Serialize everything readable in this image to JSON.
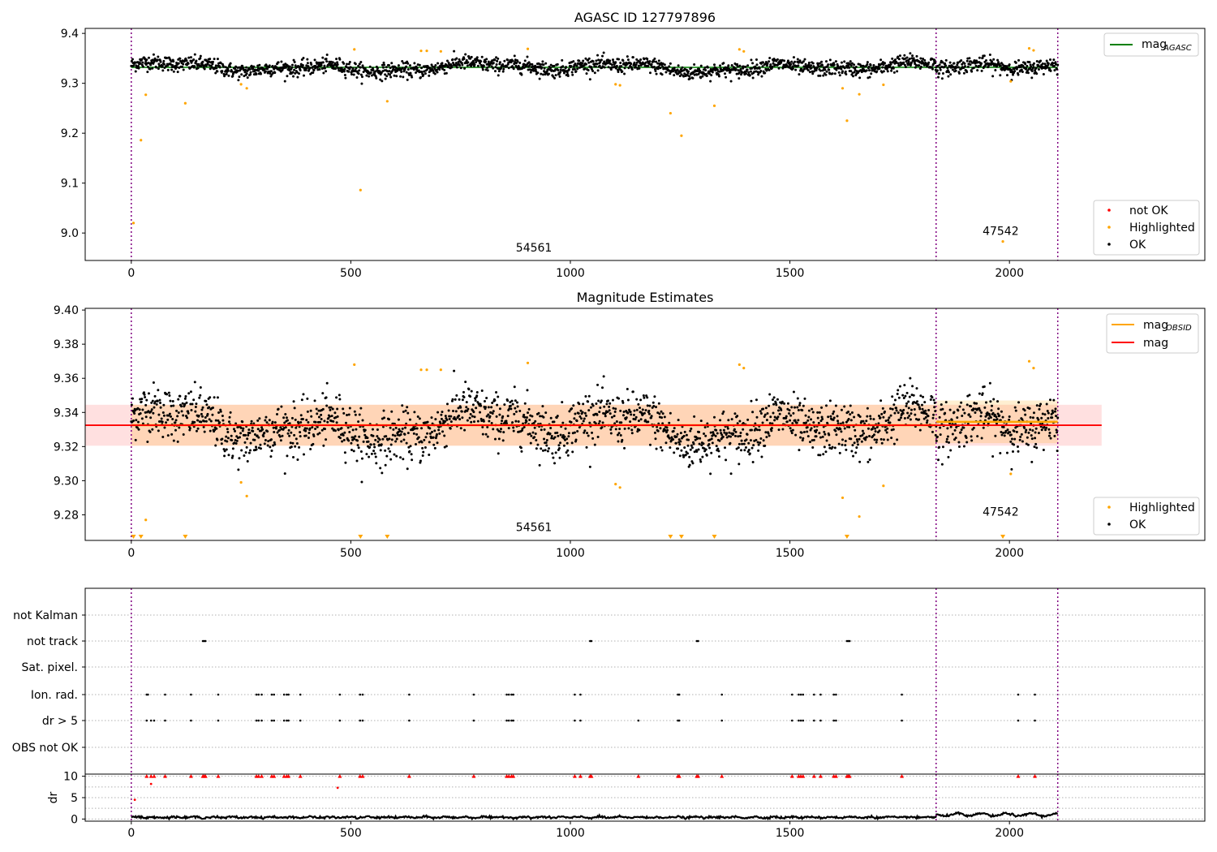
{
  "chart_data": [
    {
      "panel": "top",
      "type": "scatter",
      "title": "AGASC ID 127797896",
      "xlabel": "",
      "ylabel": "",
      "xlim": [
        -105,
        2445
      ],
      "ylim": [
        8.945,
        9.41
      ],
      "x_ticks": [
        0,
        500,
        1000,
        1500,
        2000
      ],
      "y_ticks": [
        9.0,
        9.1,
        9.2,
        9.3,
        9.4
      ],
      "y_tick_labels": [
        "9.0",
        "9.1",
        "9.2",
        "9.3",
        "9.4"
      ],
      "obsid_boundaries": [
        0,
        1833,
        2110
      ],
      "obsid_labels": [
        {
          "text": "54561",
          "x": 917,
          "y": 8.963
        },
        {
          "text": "47542",
          "x": 1980,
          "y": 8.996
        }
      ],
      "series": [
        {
          "name": "mag_AGASC",
          "type": "line",
          "color": "#008000",
          "value": 9.332,
          "x_range": [
            0,
            2110
          ]
        },
        {
          "name": "OK",
          "color": "#000000",
          "type": "scatter",
          "description_values": "about 2100 points scattered in 9.30–9.36"
        },
        {
          "name": "Highlighted",
          "color": "#ffa500",
          "type": "scatter",
          "points": [
            [
              5,
              9.02
            ],
            [
              22,
              9.186
            ],
            [
              33,
              9.277
            ],
            [
              123,
              9.26
            ],
            [
              250,
              9.298
            ],
            [
              263,
              9.29
            ],
            [
              508,
              9.368
            ],
            [
              522,
              9.086
            ],
            [
              583,
              9.264
            ],
            [
              660,
              9.365
            ],
            [
              673,
              9.365
            ],
            [
              705,
              9.364
            ],
            [
              903,
              9.369
            ],
            [
              1103,
              9.298
            ],
            [
              1113,
              9.296
            ],
            [
              1228,
              9.24
            ],
            [
              1253,
              9.195
            ],
            [
              1328,
              9.255
            ],
            [
              1385,
              9.368
            ],
            [
              1395,
              9.364
            ],
            [
              1620,
              9.29
            ],
            [
              1630,
              9.225
            ],
            [
              1658,
              9.278
            ],
            [
              1713,
              9.297
            ],
            [
              1985,
              8.983
            ],
            [
              2003,
              9.304
            ],
            [
              2045,
              9.37
            ],
            [
              2055,
              9.366
            ]
          ]
        },
        {
          "name": "not OK",
          "color": "#ff0000",
          "type": "scatter",
          "points": []
        }
      ],
      "legend_upper": {
        "position": "upper right",
        "entries": [
          {
            "label": "mag",
            "sub": "AGASC",
            "color": "#008000"
          }
        ]
      },
      "legend_lower": {
        "position": "lower right",
        "entries": [
          {
            "label": "not OK",
            "color": "#ff0000"
          },
          {
            "label": "Highlighted",
            "color": "#ffa500"
          },
          {
            "label": "OK",
            "color": "#000000"
          }
        ]
      }
    },
    {
      "panel": "middle",
      "type": "scatter",
      "title": "Magnitude Estimates",
      "xlabel": "",
      "ylabel": "",
      "xlim": [
        -105,
        2445
      ],
      "ylim": [
        9.265,
        9.401
      ],
      "x_ticks": [
        0,
        500,
        1000,
        1500,
        2000
      ],
      "y_ticks": [
        9.28,
        9.3,
        9.32,
        9.34,
        9.36,
        9.38,
        9.4
      ],
      "y_tick_labels": [
        "9.28",
        "9.30",
        "9.32",
        "9.34",
        "9.36",
        "9.38",
        "9.40"
      ],
      "obsid_boundaries": [
        0,
        1833,
        2110
      ],
      "obsid_labels": [
        {
          "text": "54561",
          "x": 917,
          "y": 9.2705
        },
        {
          "text": "47542",
          "x": 1980,
          "y": 9.2795
        }
      ],
      "mag": {
        "value": 9.3325,
        "band": [
          9.3205,
          9.3445
        ],
        "x_range": [
          -105,
          2210
        ],
        "color": "#ff0000"
      },
      "mag_obsid": [
        {
          "x_range": [
            0,
            1833
          ],
          "value": 9.3325,
          "band": [
            9.3205,
            9.3445
          ]
        },
        {
          "x_range": [
            1833,
            2110
          ],
          "value": 9.3345,
          "band": [
            9.322,
            9.347
          ]
        }
      ],
      "series": [
        {
          "name": "Highlighted",
          "color": "#ffa500",
          "type": "scatter",
          "points": [
            [
              33,
              9.277
            ],
            [
              250,
              9.299
            ],
            [
              263,
              9.291
            ],
            [
              508,
              9.368
            ],
            [
              660,
              9.365
            ],
            [
              673,
              9.365
            ],
            [
              705,
              9.365
            ],
            [
              903,
              9.369
            ],
            [
              1103,
              9.298
            ],
            [
              1113,
              9.296
            ],
            [
              1385,
              9.368
            ],
            [
              1395,
              9.366
            ],
            [
              1620,
              9.29
            ],
            [
              1658,
              9.279
            ],
            [
              1713,
              9.297
            ],
            [
              2003,
              9.304
            ],
            [
              2045,
              9.37
            ],
            [
              2055,
              9.366
            ]
          ]
        },
        {
          "name": "Highlighted (below range)",
          "color": "#ffa500",
          "marker": "triangle-down",
          "x": [
            5,
            22,
            123,
            522,
            583,
            1228,
            1253,
            1328,
            1630,
            1985
          ]
        },
        {
          "name": "OK",
          "color": "#000000",
          "type": "scatter",
          "description_values": "about 2100 points scattered in 9.300–9.364"
        }
      ],
      "legend_upper": {
        "position": "upper right",
        "entries": [
          {
            "label": "mag",
            "sub": "OBSID",
            "color": "#ffa500"
          },
          {
            "label": "mag",
            "sub": "",
            "color": "#ff0000"
          }
        ]
      },
      "legend_lower": {
        "position": "lower right",
        "entries": [
          {
            "label": "Highlighted",
            "color": "#ffa500"
          },
          {
            "label": "OK",
            "color": "#000000"
          }
        ]
      }
    },
    {
      "panel": "flags",
      "type": "scatter",
      "xlim": [
        -105,
        2445
      ],
      "x_ticks": [
        0,
        500,
        1000,
        1500,
        2000
      ],
      "categories": [
        "not Kalman",
        "not track",
        "Sat. pixel.",
        "Ion. rad.",
        "dr > 5",
        "OBS not OK"
      ],
      "obsid_boundaries": [
        0,
        1833,
        2110
      ],
      "flag_points": {
        "not Kalman": [],
        "not track": [
          163,
          166,
          169,
          1045,
          1048,
          1288,
          1291,
          1630,
          1633,
          1636
        ],
        "Sat. pixel.": [],
        "Ion. rad.": [
          35,
          38,
          77,
          136,
          198,
          285,
          290,
          297,
          320,
          325,
          348,
          354,
          358,
          385,
          475,
          521,
          527,
          633,
          780,
          855,
          860,
          866,
          870,
          1010,
          1023,
          1245,
          1248,
          1345,
          1505,
          1520,
          1525,
          1530,
          1555,
          1570,
          1600,
          1605,
          1755,
          2020,
          2058
        ],
        "dr > 5": [
          35,
          45,
          52,
          77,
          136,
          198,
          285,
          290,
          297,
          320,
          325,
          348,
          354,
          358,
          385,
          475,
          521,
          527,
          633,
          780,
          855,
          860,
          866,
          870,
          1010,
          1023,
          1155,
          1245,
          1248,
          1345,
          1505,
          1520,
          1525,
          1530,
          1555,
          1570,
          1600,
          1605,
          1755,
          2020,
          2058
        ],
        "OBS not OK": []
      }
    },
    {
      "panel": "dr",
      "type": "line",
      "ylabel": "dr",
      "xlim": [
        -105,
        2445
      ],
      "ylim": [
        -0.5,
        10.5
      ],
      "y_ticks": [
        0,
        5,
        10
      ],
      "x_ticks": [
        0,
        500,
        1000,
        1500,
        2000
      ],
      "x_tick_labels": [
        "0",
        "500",
        "1000",
        "1500",
        "2000"
      ],
      "obsid_boundaries": [
        0,
        1833,
        2110
      ],
      "dr_baseline": {
        "segment1_mean": 0.4,
        "segment2_mean": 1.0
      },
      "dr_capped_points": {
        "color": "#ff0000",
        "marker": "triangle-up",
        "value": 10,
        "x": [
          35,
          45,
          52,
          77,
          136,
          163,
          166,
          169,
          198,
          285,
          290,
          297,
          320,
          325,
          348,
          354,
          358,
          385,
          475,
          521,
          527,
          633,
          780,
          855,
          860,
          866,
          870,
          1010,
          1023,
          1045,
          1048,
          1155,
          1245,
          1248,
          1288,
          1291,
          1345,
          1505,
          1520,
          1525,
          1530,
          1555,
          1570,
          1600,
          1605,
          1630,
          1633,
          1636,
          1755,
          2020,
          2058
        ]
      },
      "dr_other_red": [
        [
          8,
          4.5
        ],
        [
          45,
          8.2
        ],
        [
          470,
          7.3
        ]
      ]
    }
  ]
}
